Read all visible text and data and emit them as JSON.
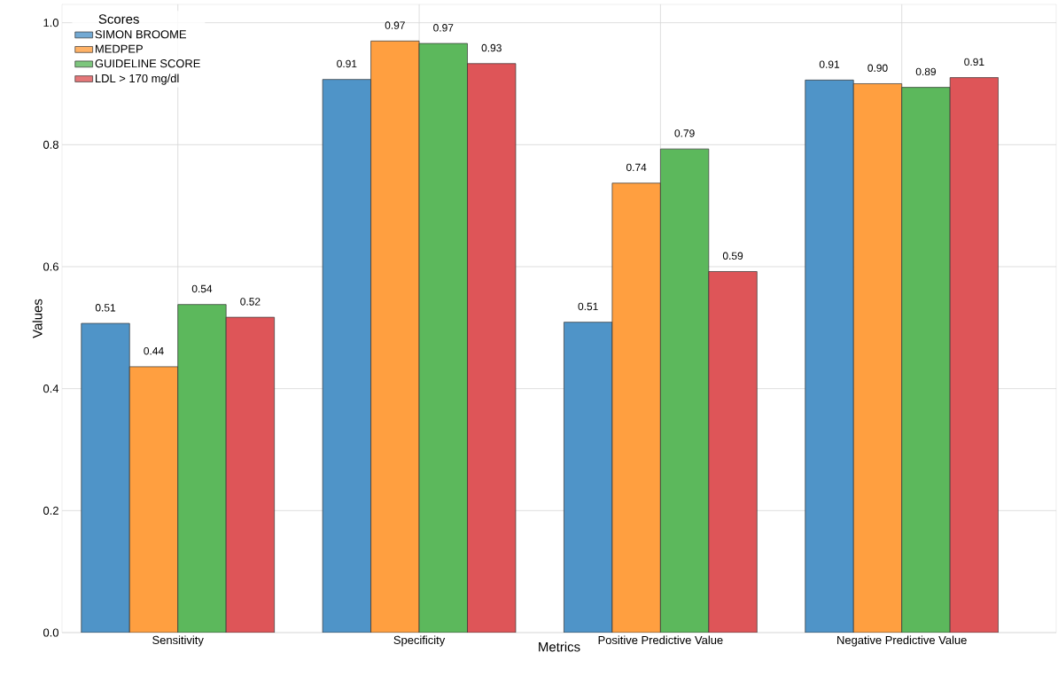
{
  "chart_data": {
    "type": "bar",
    "xlabel": "Metrics",
    "ylabel": "Values",
    "legend_title": "Scores",
    "categories": [
      "Sensitivity",
      "Specificity",
      "Positive Predictive Value",
      "Negative Predictive Value"
    ],
    "series": [
      {
        "name": "SIMON BROOME",
        "color": "#4f94c8",
        "values": [
          0.507,
          0.907,
          0.509,
          0.906
        ],
        "value_labels": [
          "0.51",
          "0.91",
          "0.51",
          "0.91"
        ]
      },
      {
        "name": "MEDPEP",
        "color": "#ff9f40",
        "values": [
          0.436,
          0.97,
          0.737,
          0.9
        ],
        "value_labels": [
          "0.44",
          "0.97",
          "0.74",
          "0.90"
        ]
      },
      {
        "name": "GUIDELINE SCORE",
        "color": "#5cb85c",
        "values": [
          0.538,
          0.966,
          0.793,
          0.894
        ],
        "value_labels": [
          "0.54",
          "0.97",
          "0.79",
          "0.89"
        ]
      },
      {
        "name": "LDL > 170 mg/dl",
        "color": "#de5558",
        "values": [
          0.517,
          0.933,
          0.592,
          0.91
        ],
        "value_labels": [
          "0.52",
          "0.93",
          "0.59",
          "0.91"
        ]
      }
    ],
    "ylim": [
      0,
      1.03
    ],
    "yticks": [
      {
        "value": 0,
        "label": "0.0"
      },
      {
        "value": 0.2,
        "label": "0.2"
      },
      {
        "value": 0.4,
        "label": "0.4"
      },
      {
        "value": 0.6,
        "label": "0.6"
      },
      {
        "value": 0.8,
        "label": "0.8"
      },
      {
        "value": 1.0,
        "label": "1.0"
      }
    ],
    "grid": true,
    "legend": "top left"
  }
}
